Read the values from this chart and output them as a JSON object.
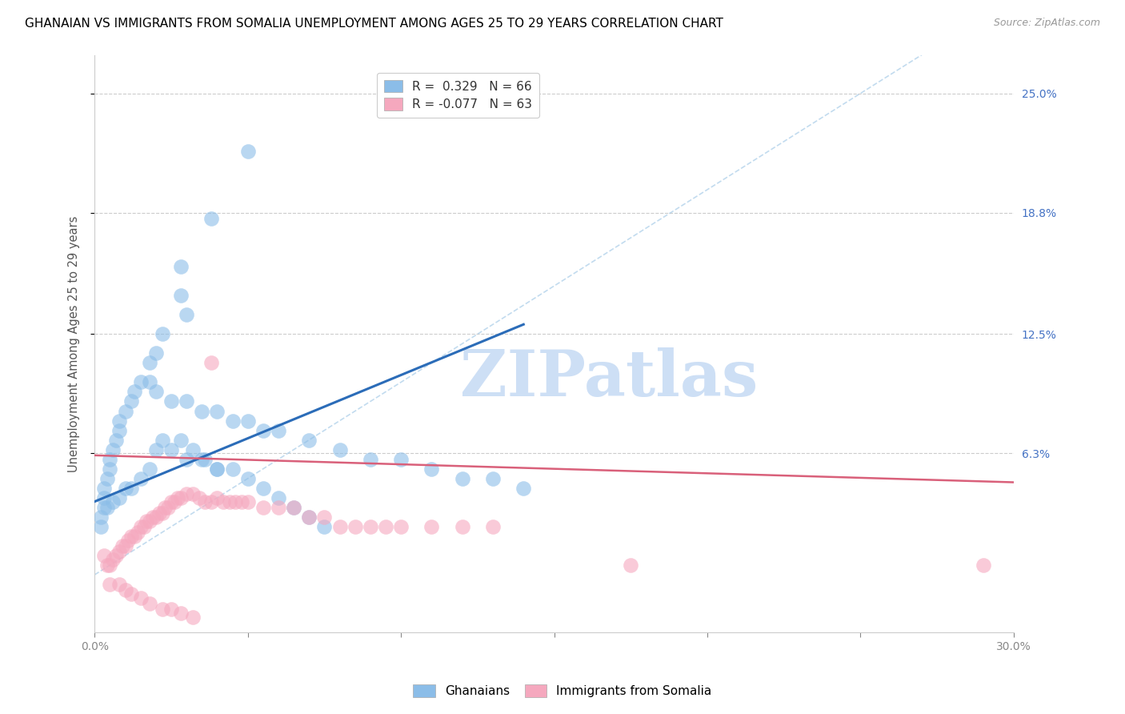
{
  "title": "GHANAIAN VS IMMIGRANTS FROM SOMALIA UNEMPLOYMENT AMONG AGES 25 TO 29 YEARS CORRELATION CHART",
  "source": "Source: ZipAtlas.com",
  "ylabel": "Unemployment Among Ages 25 to 29 years",
  "xlim": [
    0,
    0.3
  ],
  "ylim": [
    -0.03,
    0.27
  ],
  "right_yticks": [
    0.063,
    0.125,
    0.188,
    0.25
  ],
  "right_yticklabels": [
    "6.3%",
    "12.5%",
    "18.8%",
    "25.0%"
  ],
  "xticks": [
    0.0,
    0.05,
    0.1,
    0.15,
    0.2,
    0.25,
    0.3
  ],
  "xticklabels": [
    "0.0%",
    "",
    "",
    "",
    "",
    "",
    "30.0%"
  ],
  "watermark": "ZIPatlas",
  "watermark_color": "#cddff5",
  "blue_scatter_x": [
    0.05,
    0.038,
    0.028,
    0.028,
    0.03,
    0.022,
    0.02,
    0.018,
    0.015,
    0.013,
    0.012,
    0.01,
    0.008,
    0.008,
    0.007,
    0.006,
    0.005,
    0.005,
    0.004,
    0.003,
    0.003,
    0.003,
    0.002,
    0.002,
    0.018,
    0.02,
    0.025,
    0.03,
    0.035,
    0.04,
    0.045,
    0.05,
    0.055,
    0.06,
    0.07,
    0.08,
    0.09,
    0.1,
    0.11,
    0.12,
    0.13,
    0.14,
    0.02,
    0.025,
    0.03,
    0.035,
    0.04,
    0.018,
    0.015,
    0.012,
    0.01,
    0.008,
    0.006,
    0.004,
    0.022,
    0.028,
    0.032,
    0.036,
    0.04,
    0.045,
    0.05,
    0.055,
    0.06,
    0.065,
    0.07,
    0.075
  ],
  "blue_scatter_y": [
    0.22,
    0.185,
    0.16,
    0.145,
    0.135,
    0.125,
    0.115,
    0.11,
    0.1,
    0.095,
    0.09,
    0.085,
    0.08,
    0.075,
    0.07,
    0.065,
    0.06,
    0.055,
    0.05,
    0.045,
    0.04,
    0.035,
    0.03,
    0.025,
    0.1,
    0.095,
    0.09,
    0.09,
    0.085,
    0.085,
    0.08,
    0.08,
    0.075,
    0.075,
    0.07,
    0.065,
    0.06,
    0.06,
    0.055,
    0.05,
    0.05,
    0.045,
    0.065,
    0.065,
    0.06,
    0.06,
    0.055,
    0.055,
    0.05,
    0.045,
    0.045,
    0.04,
    0.038,
    0.035,
    0.07,
    0.07,
    0.065,
    0.06,
    0.055,
    0.055,
    0.05,
    0.045,
    0.04,
    0.035,
    0.03,
    0.025
  ],
  "pink_scatter_x": [
    0.003,
    0.004,
    0.005,
    0.006,
    0.007,
    0.008,
    0.009,
    0.01,
    0.011,
    0.012,
    0.013,
    0.014,
    0.015,
    0.016,
    0.017,
    0.018,
    0.019,
    0.02,
    0.021,
    0.022,
    0.023,
    0.024,
    0.025,
    0.026,
    0.027,
    0.028,
    0.03,
    0.032,
    0.034,
    0.036,
    0.038,
    0.04,
    0.042,
    0.044,
    0.046,
    0.048,
    0.05,
    0.055,
    0.06,
    0.065,
    0.07,
    0.075,
    0.08,
    0.085,
    0.09,
    0.095,
    0.1,
    0.11,
    0.12,
    0.13,
    0.005,
    0.008,
    0.01,
    0.012,
    0.015,
    0.018,
    0.022,
    0.025,
    0.028,
    0.032,
    0.175,
    0.29,
    0.038
  ],
  "pink_scatter_y": [
    0.01,
    0.005,
    0.005,
    0.008,
    0.01,
    0.012,
    0.015,
    0.015,
    0.018,
    0.02,
    0.02,
    0.022,
    0.025,
    0.025,
    0.028,
    0.028,
    0.03,
    0.03,
    0.032,
    0.032,
    0.035,
    0.035,
    0.038,
    0.038,
    0.04,
    0.04,
    0.042,
    0.042,
    0.04,
    0.038,
    0.038,
    0.04,
    0.038,
    0.038,
    0.038,
    0.038,
    0.038,
    0.035,
    0.035,
    0.035,
    0.03,
    0.03,
    0.025,
    0.025,
    0.025,
    0.025,
    0.025,
    0.025,
    0.025,
    0.025,
    -0.005,
    -0.005,
    -0.008,
    -0.01,
    -0.012,
    -0.015,
    -0.018,
    -0.018,
    -0.02,
    -0.022,
    0.005,
    0.005,
    0.11
  ],
  "blue_line_x": [
    0.0,
    0.14
  ],
  "blue_line_y": [
    0.038,
    0.13
  ],
  "pink_line_x": [
    0.0,
    0.3
  ],
  "pink_line_y": [
    0.062,
    0.048
  ],
  "diag_line_x": [
    0.0,
    0.27
  ],
  "diag_line_y": [
    0.0,
    0.27
  ],
  "blue_color": "#8bbde8",
  "pink_color": "#f5a8be",
  "blue_line_color": "#2b6cb8",
  "pink_line_color": "#d9607a",
  "diag_line_color": "#a8cce8",
  "grid_color": "#cccccc",
  "title_fontsize": 11,
  "axis_label_fontsize": 10.5,
  "tick_fontsize": 10,
  "legend_fontsize": 11
}
